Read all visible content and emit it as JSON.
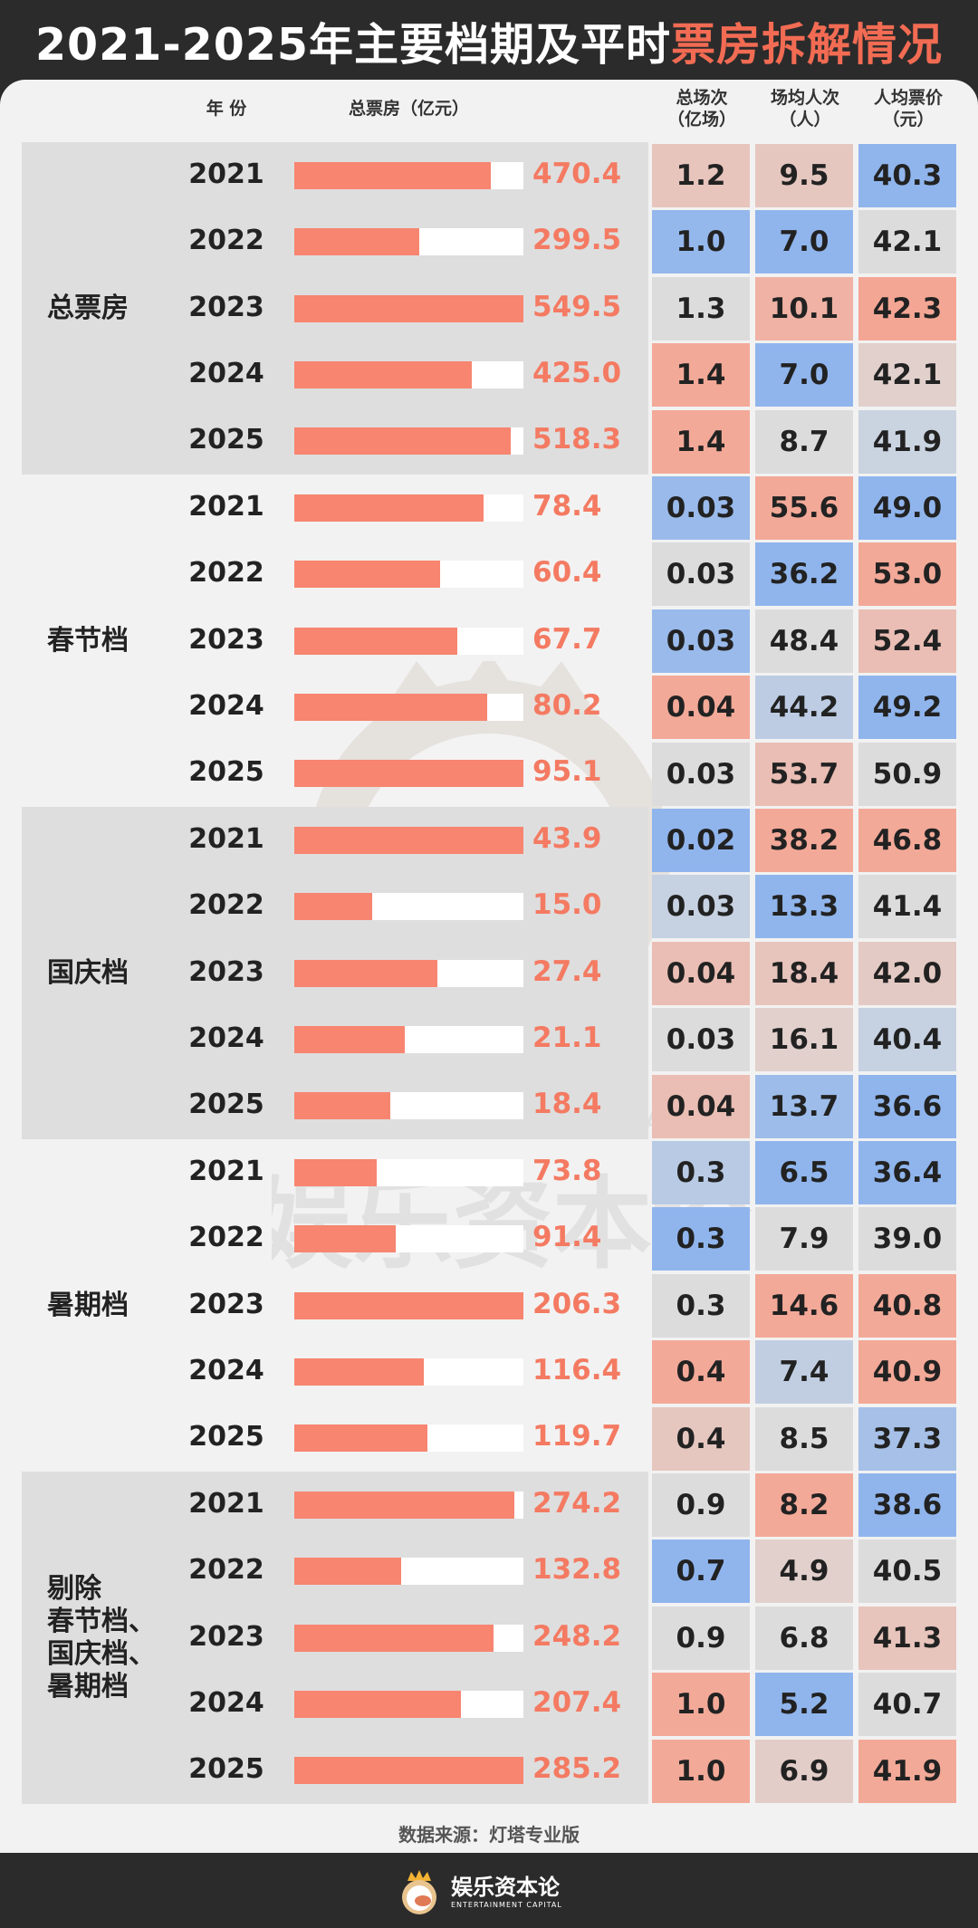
{
  "title": {
    "part1": "2021-2025年主要档期及平时",
    "part2": "票房拆解情况"
  },
  "headers": {
    "year": "年 份",
    "box": "总票房（亿元）",
    "screenings": [
      "总场次",
      "（亿场）"
    ],
    "avg_attendance": [
      "场均人次",
      "（人）"
    ],
    "avg_price": [
      "人均票价",
      "（元）"
    ]
  },
  "source": "数据来源：灯塔专业版",
  "watermark": {
    "en": "ENTERTAINMENT CAPITAL",
    "cn": "娱乐资本论"
  },
  "footer": {
    "cn": "娱乐资本论",
    "en": "ENTERTAINMENT CAPITAL"
  },
  "colors": {
    "bar": "#f78570",
    "bar_text": "#f47a62",
    "blue": "#82aef0",
    "red": "#f7a08c",
    "neutral": "#dcdcdc"
  },
  "chart_data": {
    "type": "table",
    "columns": [
      "年 份",
      "总票房（亿元）",
      "总场次（亿场）",
      "场均人次（人）",
      "人均票价（元）"
    ],
    "groups": [
      {
        "label": [
          "总票房"
        ],
        "rows": [
          {
            "year": "2021",
            "box": 470.4,
            "screenings": "1.2",
            "attendance": "9.5",
            "price": "40.3",
            "c": [
              0.4,
              0.35,
              -0.85
            ]
          },
          {
            "year": "2022",
            "box": 299.5,
            "screenings": "1.0",
            "attendance": "7.0",
            "price": "42.1",
            "c": [
              -0.8,
              -0.85,
              0
            ]
          },
          {
            "year": "2023",
            "box": 549.5,
            "screenings": "1.3",
            "attendance": "10.1",
            "price": "42.3",
            "c": [
              0,
              0.7,
              0.9
            ]
          },
          {
            "year": "2024",
            "box": 425.0,
            "screenings": "1.4",
            "attendance": "7.0",
            "price": "42.1",
            "c": [
              0.85,
              -0.85,
              0.2
            ]
          },
          {
            "year": "2025",
            "box": 518.3,
            "screenings": "1.4",
            "attendance": "8.7",
            "price": "41.9",
            "c": [
              0.85,
              0,
              -0.2
            ]
          }
        ]
      },
      {
        "label": [
          "春节档"
        ],
        "rows": [
          {
            "year": "2021",
            "box": 78.4,
            "screenings": "0.03",
            "attendance": "55.6",
            "price": "49.0",
            "c": [
              -0.75,
              0.85,
              -0.85
            ]
          },
          {
            "year": "2022",
            "box": 60.4,
            "screenings": "0.03",
            "attendance": "36.2",
            "price": "53.0",
            "c": [
              0,
              -0.85,
              0.85
            ]
          },
          {
            "year": "2023",
            "box": 67.7,
            "screenings": "0.03",
            "attendance": "48.4",
            "price": "52.4",
            "c": [
              -0.75,
              0,
              0.5
            ]
          },
          {
            "year": "2024",
            "box": 80.2,
            "screenings": "0.04",
            "attendance": "44.2",
            "price": "49.2",
            "c": [
              0.85,
              -0.35,
              -0.85
            ]
          },
          {
            "year": "2025",
            "box": 95.1,
            "screenings": "0.03",
            "attendance": "53.7",
            "price": "50.9",
            "c": [
              0,
              0.5,
              0
            ]
          }
        ]
      },
      {
        "label": [
          "国庆档"
        ],
        "rows": [
          {
            "year": "2021",
            "box": 43.9,
            "screenings": "0.02",
            "attendance": "38.2",
            "price": "46.8",
            "c": [
              -0.85,
              0.85,
              0.85
            ]
          },
          {
            "year": "2022",
            "box": 15.0,
            "screenings": "0.03",
            "attendance": "13.3",
            "price": "41.4",
            "c": [
              -0.25,
              -0.85,
              0
            ]
          },
          {
            "year": "2023",
            "box": 27.4,
            "screenings": "0.04",
            "attendance": "18.4",
            "price": "42.0",
            "c": [
              0.5,
              0.4,
              0.3
            ]
          },
          {
            "year": "2024",
            "box": 21.1,
            "screenings": "0.03",
            "attendance": "16.1",
            "price": "40.4",
            "c": [
              0,
              0.2,
              -0.25
            ]
          },
          {
            "year": "2025",
            "box": 18.4,
            "screenings": "0.04",
            "attendance": "13.7",
            "price": "36.6",
            "c": [
              0.5,
              -0.7,
              -0.85
            ]
          }
        ]
      },
      {
        "label": [
          "暑期档"
        ],
        "rows": [
          {
            "year": "2021",
            "box": 73.8,
            "screenings": "0.3",
            "attendance": "6.5",
            "price": "36.4",
            "c": [
              -0.4,
              -0.85,
              -0.85
            ]
          },
          {
            "year": "2022",
            "box": 91.4,
            "screenings": "0.3",
            "attendance": "7.9",
            "price": "39.0",
            "c": [
              -0.85,
              0,
              0
            ]
          },
          {
            "year": "2023",
            "box": 206.3,
            "screenings": "0.3",
            "attendance": "14.6",
            "price": "40.8",
            "c": [
              0,
              0.85,
              0.85
            ]
          },
          {
            "year": "2024",
            "box": 116.4,
            "screenings": "0.4",
            "attendance": "7.4",
            "price": "40.9",
            "c": [
              0.85,
              -0.3,
              0.85
            ]
          },
          {
            "year": "2025",
            "box": 119.7,
            "screenings": "0.4",
            "attendance": "8.5",
            "price": "37.3",
            "c": [
              0.35,
              0,
              -0.6
            ]
          }
        ]
      },
      {
        "label": [
          "剔除",
          "春节档、",
          "国庆档、",
          "暑期档"
        ],
        "rows": [
          {
            "year": "2021",
            "box": 274.2,
            "screenings": "0.9",
            "attendance": "8.2",
            "price": "38.6",
            "c": [
              0,
              0.85,
              -0.85
            ]
          },
          {
            "year": "2022",
            "box": 132.8,
            "screenings": "0.7",
            "attendance": "4.9",
            "price": "40.5",
            "c": [
              -0.85,
              0.2,
              0
            ]
          },
          {
            "year": "2023",
            "box": 248.2,
            "screenings": "0.9",
            "attendance": "6.8",
            "price": "41.3",
            "c": [
              0,
              0,
              0.4
            ]
          },
          {
            "year": "2024",
            "box": 207.4,
            "screenings": "1.0",
            "attendance": "5.2",
            "price": "40.7",
            "c": [
              0.85,
              -0.85,
              0
            ]
          },
          {
            "year": "2025",
            "box": 285.2,
            "screenings": "1.0",
            "attendance": "6.9",
            "price": "41.9",
            "c": [
              0.85,
              0.25,
              0.85
            ]
          }
        ]
      }
    ]
  }
}
